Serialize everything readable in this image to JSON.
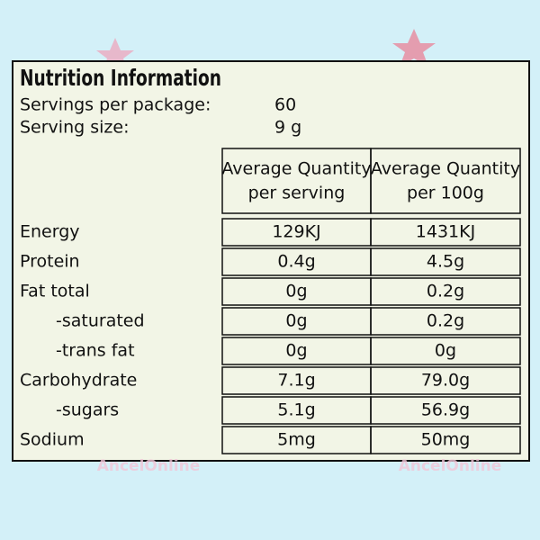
{
  "title": "Nutrition Information",
  "servings": [
    {
      "label": "Servings per package:",
      "value": "60"
    },
    {
      "label": "Serving size:",
      "value": "9 g"
    }
  ],
  "table": {
    "headers": [
      [
        "Average Quantity",
        "per serving"
      ],
      [
        "Average Quantity",
        "per 100g"
      ]
    ],
    "rows": [
      [
        "Energy",
        "129KJ",
        "1431KJ"
      ],
      [
        "Protein",
        "0.4g",
        "4.5g"
      ],
      [
        "Fat total",
        "0g",
        "0.2g"
      ],
      [
        "-saturated",
        "0g",
        "0.2g"
      ],
      [
        "-trans fat",
        "0g",
        "0g"
      ],
      [
        "Carbohydrate",
        "7.1g",
        "79.0g"
      ],
      [
        "-sugars",
        "5.1g",
        "56.9g"
      ],
      [
        "Sodium",
        "5mg",
        "50mg"
      ]
    ]
  },
  "watermarks": [
    "AncelOnline",
    "AncelOnline"
  ]
}
